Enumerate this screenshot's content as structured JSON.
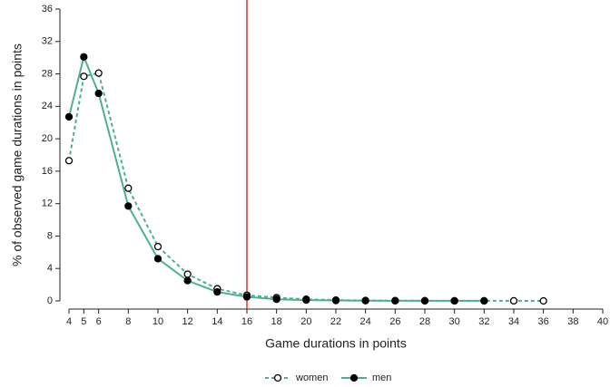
{
  "chart_data": {
    "type": "line",
    "x_label": "Game durations in points",
    "y_label": "% of observed game durations in points",
    "x": [
      4,
      5,
      6,
      8,
      10,
      12,
      14,
      16,
      18,
      20,
      22,
      24,
      26,
      28,
      30,
      32,
      34,
      36
    ],
    "series": [
      {
        "name": "women",
        "color": "#4fb08f",
        "dashed": true,
        "filled": false,
        "values": [
          17.3,
          27.7,
          28.1,
          13.9,
          6.7,
          3.3,
          1.5,
          0.7,
          0.4,
          0.2,
          0.1,
          0.05,
          0.03,
          0.02,
          0.01,
          0.01,
          0.01,
          0.0
        ]
      },
      {
        "name": "men",
        "color": "#4fb08f",
        "dashed": false,
        "filled": true,
        "values": [
          22.7,
          30.1,
          25.6,
          11.7,
          5.2,
          2.5,
          1.1,
          0.5,
          0.2,
          0.1,
          0.05,
          0.03,
          0.02,
          0.01,
          0.01,
          0.01,
          null,
          null
        ]
      }
    ],
    "xlim": [
      4,
      40
    ],
    "xticks": [
      4,
      5,
      6,
      8,
      10,
      12,
      14,
      16,
      18,
      20,
      22,
      24,
      26,
      28,
      30,
      32,
      34,
      36,
      38,
      40
    ],
    "ylim": [
      0,
      36
    ],
    "yticks": [
      0,
      4,
      8,
      12,
      16,
      20,
      24,
      28,
      32,
      36
    ],
    "vline": 16,
    "vline_color": "#e8312f",
    "legend": "bottom"
  }
}
